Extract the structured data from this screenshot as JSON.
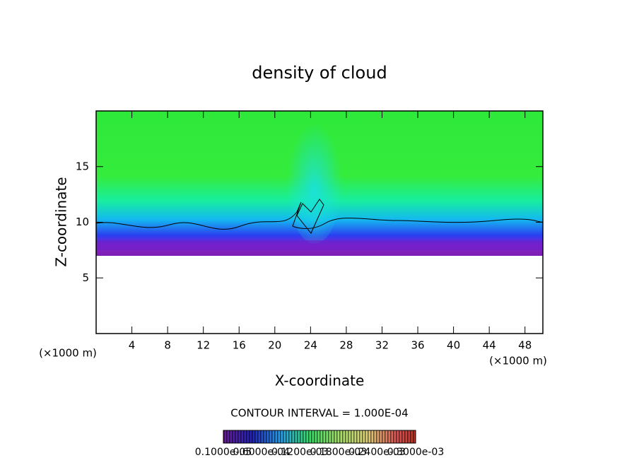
{
  "chart_data": {
    "type": "field",
    "title": "density of cloud",
    "xlabel": "X-coordinate",
    "ylabel": "Z-coordinate",
    "x_unit": "(×1000 m)",
    "y_unit": "(×1000 m)",
    "xlim": [
      0,
      50
    ],
    "ylim": [
      0,
      20
    ],
    "xticks": [
      4,
      8,
      12,
      16,
      20,
      24,
      28,
      32,
      36,
      40,
      44,
      48
    ],
    "yticks": [
      5,
      10,
      15
    ],
    "contour_note": "CONTOUR INTERVAL = 1.000E-04",
    "clim": [
      1e-06,
      0.0003
    ],
    "cticks": [
      {
        "value": 1e-06,
        "label": "0.1000e-05"
      },
      {
        "value": 6e-05,
        "label": "0.6000e-04"
      },
      {
        "value": 0.00012,
        "label": "0.1200e-03"
      },
      {
        "value": 0.00018,
        "label": "0.1800e-03"
      },
      {
        "value": 0.00024,
        "label": "0.2400e-03"
      },
      {
        "value": 0.0003,
        "label": "0.3000e-03"
      }
    ]
  }
}
